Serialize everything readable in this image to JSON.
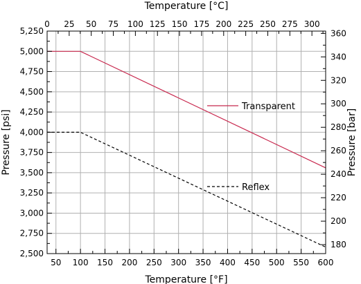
{
  "chart_data": {
    "type": "line",
    "xlabel_bottom": "Temperature [°F]",
    "xlabel_top": "Temperature [°C]",
    "ylabel_left": "Pressure [psi]",
    "ylabel_right": "Pressure [bar]",
    "xlim_f": [
      32,
      600
    ],
    "ylim_psi": [
      2500,
      5250
    ],
    "xlim_c": [
      0,
      315.56
    ],
    "ylim_bar": [
      172.37,
      361.97
    ],
    "x_ticks_bottom": [
      "50",
      "100",
      "150",
      "200",
      "250",
      "300",
      "350",
      "400",
      "450",
      "500",
      "550",
      "600"
    ],
    "x_ticks_top": [
      "0",
      "25",
      "50",
      "75",
      "100",
      "125",
      "150",
      "175",
      "200",
      "225",
      "250",
      "275",
      "300"
    ],
    "y_ticks_left": [
      "2,500",
      "2,750",
      "3,000",
      "3,250",
      "3,500",
      "3,750",
      "4,000",
      "4,250",
      "4,500",
      "4,750",
      "5,000",
      "5,250"
    ],
    "y_ticks_right": [
      "180",
      "200",
      "220",
      "240",
      "260",
      "280",
      "300",
      "320",
      "340",
      "360"
    ],
    "grid": true,
    "series": [
      {
        "name": "Transparent",
        "color": "#c8284e",
        "style": "solid",
        "x": [
          32,
          100,
          600
        ],
        "y": [
          5000,
          5000,
          3560
        ]
      },
      {
        "name": "Reflex",
        "color": "#000000",
        "style": "dashed",
        "x": [
          32,
          100,
          600
        ],
        "y": [
          4000,
          4000,
          2580
        ]
      }
    ]
  }
}
